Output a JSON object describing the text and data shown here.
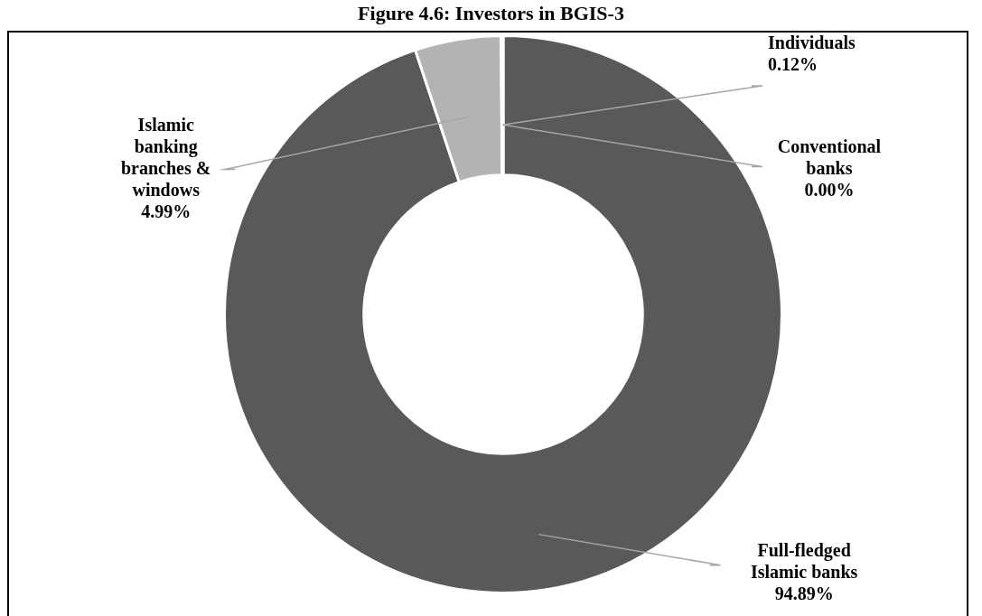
{
  "chart_data": {
    "type": "donut",
    "title": "Figure 4.6: Investors in BGIS-3",
    "categories": [
      "Full-fledged Islamic banks",
      "Islamic banking branches & windows",
      "Individuals",
      "Conventional banks"
    ],
    "values": [
      94.89,
      4.99,
      0.12,
      0.0
    ],
    "colors": [
      "#595959",
      "#b3b3b3",
      "#d9d9d9",
      "#404040"
    ],
    "value_labels": [
      "94.89%",
      "4.99%",
      "0.12%",
      "0.00%"
    ],
    "legend": false
  }
}
